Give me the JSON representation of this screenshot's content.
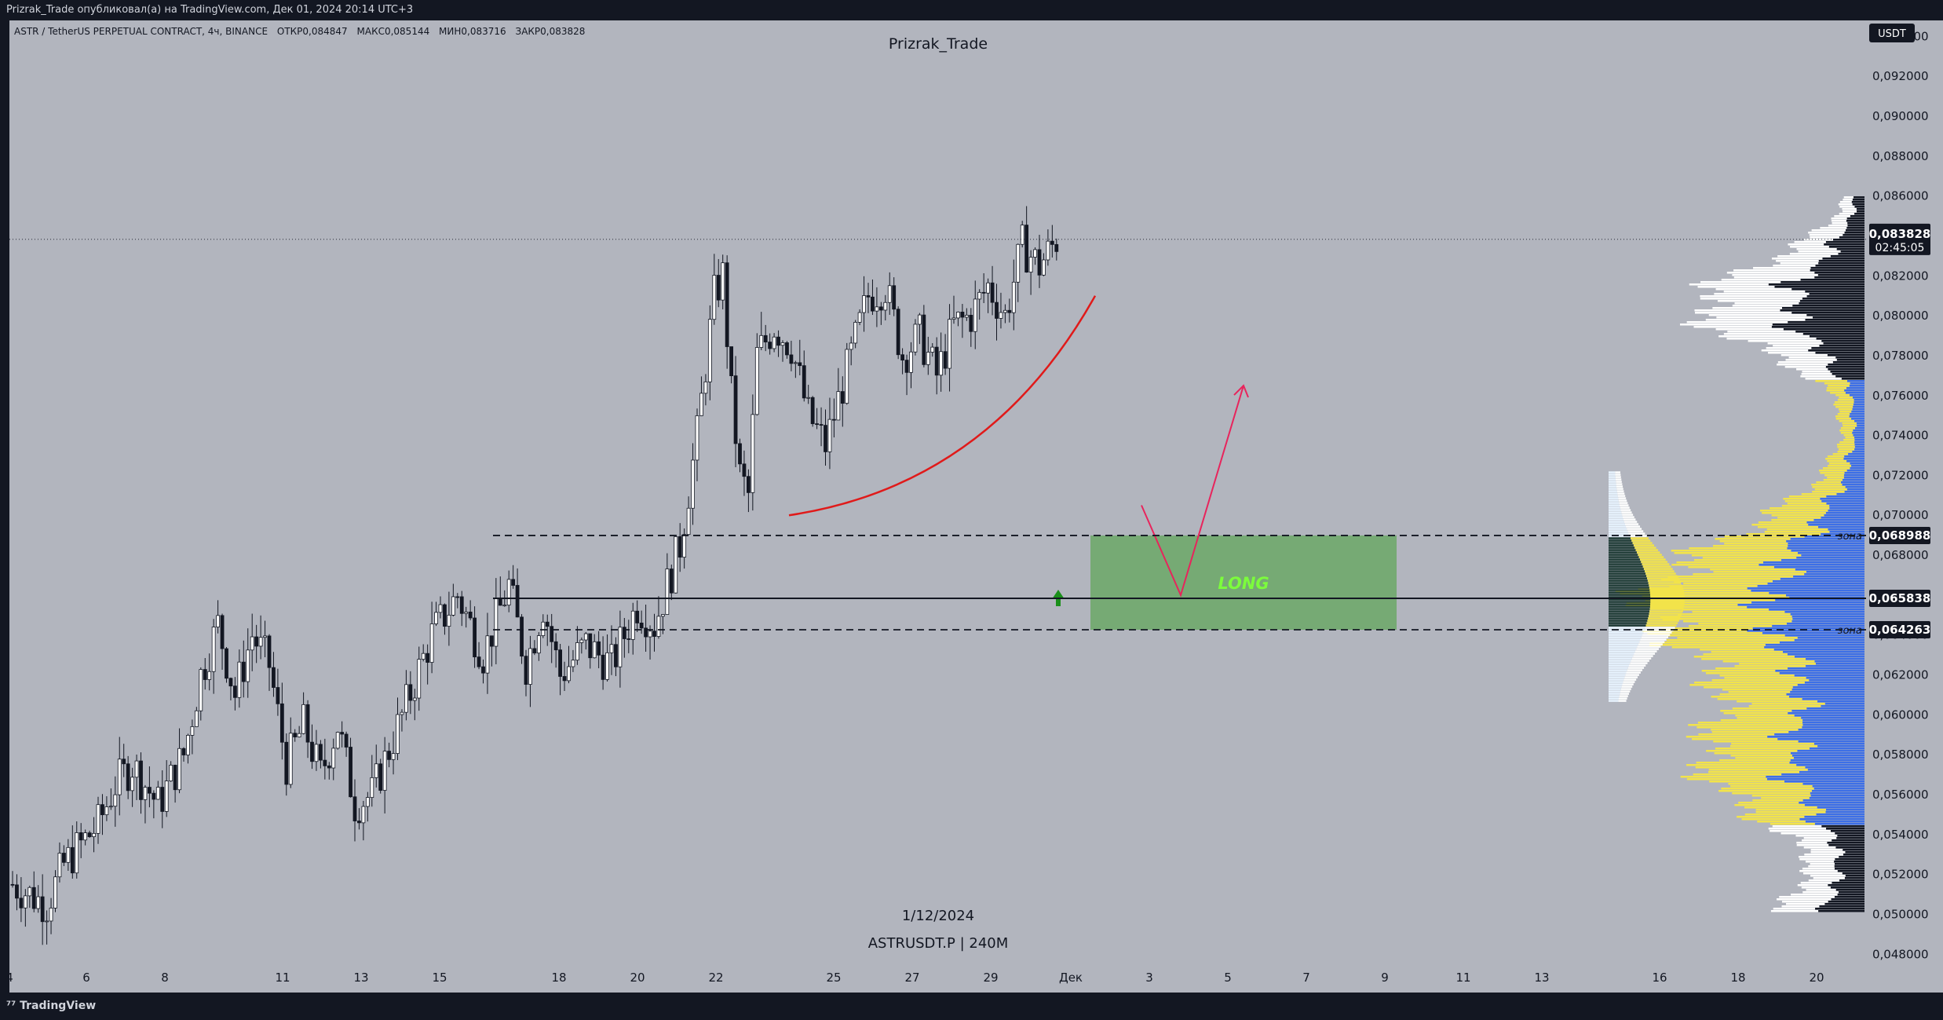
{
  "publish_line": "Prizrak_Trade опубликовал(а) на TradingView.com, Дек 01, 2024 20:14 UTC+3",
  "branding": {
    "logo_text": "TradingView"
  },
  "watermark": {
    "author": "Prizrak_Trade",
    "date": "1/12/2024",
    "symbol_line": "ASTRUSDT.P | 240M"
  },
  "legend": {
    "symbol": "ASTR / TetherUS PERPETUAL CONTRACT, 4ч, BINANCE",
    "open": "ОТКР0,084847",
    "high": "МАКС0,085144",
    "low": "МИН0,083716",
    "close": "ЗАКР0,083828"
  },
  "currency_badge": "USDT",
  "price_tag": {
    "price": "0,083828",
    "countdown": "02:45:05"
  },
  "level_tags": [
    {
      "price": "0,068988",
      "note": "зона"
    },
    {
      "price": "0,065838",
      "note": ""
    },
    {
      "price": "0,064263",
      "note": "зона"
    }
  ],
  "long_box_label": "LONG",
  "colors": {
    "chart_bg": "#b2b5be",
    "frame_bg": "#131722",
    "candle_body": "#131722",
    "long_zone": "#6fa96b",
    "long_text": "#7cfc3c",
    "arc": "#e01a1a",
    "arrow": "#e8245c",
    "vp_yellow": "#f2e34a",
    "vp_blue": "#3d6fe6",
    "vp_black": "#131722",
    "vp_white": "#ffffff",
    "up_arrow": "#1a8f1a"
  },
  "chart_data": {
    "type": "candlestick",
    "title": "",
    "price_axis": {
      "min": 0.0475,
      "max": 0.0948,
      "ticks": [
        "0,048000",
        "0,050000",
        "0,052000",
        "0,054000",
        "0,056000",
        "0,058000",
        "0,060000",
        "0,062000",
        "0,064000",
        "0,066000",
        "0,068000",
        "0,070000",
        "0,072000",
        "0,074000",
        "0,076000",
        "0,078000",
        "0,080000",
        "0,082000",
        "0,084000",
        "0,086000",
        "0,088000",
        "0,090000",
        "0,092000",
        "0,094000"
      ]
    },
    "time_axis": {
      "labels": [
        "4",
        "6",
        "8",
        "11",
        "13",
        "15",
        "18",
        "20",
        "22",
        "25",
        "27",
        "29",
        "Дек",
        "3",
        "5",
        "7",
        "9",
        "11",
        "13",
        "16",
        "18",
        "20"
      ]
    },
    "last_price": 0.083828,
    "levels": {
      "zone_top": 0.068988,
      "poc": 0.065838,
      "zone_bottom": 0.064263
    },
    "candle_path": [
      [
        0,
        0.0515
      ],
      [
        8,
        0.0505
      ],
      [
        12,
        0.0525
      ],
      [
        20,
        0.0545
      ],
      [
        24,
        0.0565
      ],
      [
        28,
        0.0575
      ],
      [
        34,
        0.0555
      ],
      [
        40,
        0.058
      ],
      [
        44,
        0.062
      ],
      [
        48,
        0.0645
      ],
      [
        52,
        0.061
      ],
      [
        56,
        0.064
      ],
      [
        60,
        0.0625
      ],
      [
        64,
        0.0575
      ],
      [
        68,
        0.0595
      ],
      [
        72,
        0.057
      ],
      [
        76,
        0.0595
      ],
      [
        80,
        0.0555
      ],
      [
        84,
        0.056
      ],
      [
        92,
        0.0605
      ],
      [
        98,
        0.064
      ],
      [
        104,
        0.066
      ],
      [
        110,
        0.063
      ],
      [
        116,
        0.0665
      ],
      [
        120,
        0.0625
      ],
      [
        124,
        0.0655
      ],
      [
        128,
        0.062
      ],
      [
        134,
        0.0635
      ],
      [
        140,
        0.0625
      ],
      [
        146,
        0.0655
      ],
      [
        150,
        0.0645
      ],
      [
        156,
        0.0685
      ],
      [
        160,
        0.074
      ],
      [
        164,
        0.081
      ],
      [
        166,
        0.082
      ],
      [
        168,
        0.076
      ],
      [
        170,
        0.072
      ],
      [
        172,
        0.071
      ],
      [
        174,
        0.078
      ],
      [
        178,
        0.0795
      ],
      [
        182,
        0.0785
      ],
      [
        186,
        0.075
      ],
      [
        190,
        0.0735
      ],
      [
        196,
        0.078
      ],
      [
        200,
        0.081
      ],
      [
        204,
        0.0815
      ],
      [
        208,
        0.078
      ],
      [
        212,
        0.079
      ],
      [
        216,
        0.077
      ],
      [
        220,
        0.0795
      ],
      [
        224,
        0.08
      ],
      [
        228,
        0.0815
      ],
      [
        232,
        0.08
      ],
      [
        236,
        0.0835
      ],
      [
        240,
        0.0825
      ],
      [
        244,
        0.0838
      ]
    ],
    "annotations": {
      "range_box": {
        "x_start": "16",
        "x_end": "23",
        "price_top": 0.0705,
        "price_bottom": 0.0622
      },
      "long_zone": {
        "x_start": "2",
        "x_end": "9",
        "price_top": 0.068988,
        "price_bottom": 0.064263,
        "label": "LONG"
      },
      "arrow_path": [
        [
          "2.8",
          0.0705
        ],
        [
          "3.8",
          0.066
        ],
        [
          "5.4",
          0.0765
        ]
      ]
    }
  }
}
